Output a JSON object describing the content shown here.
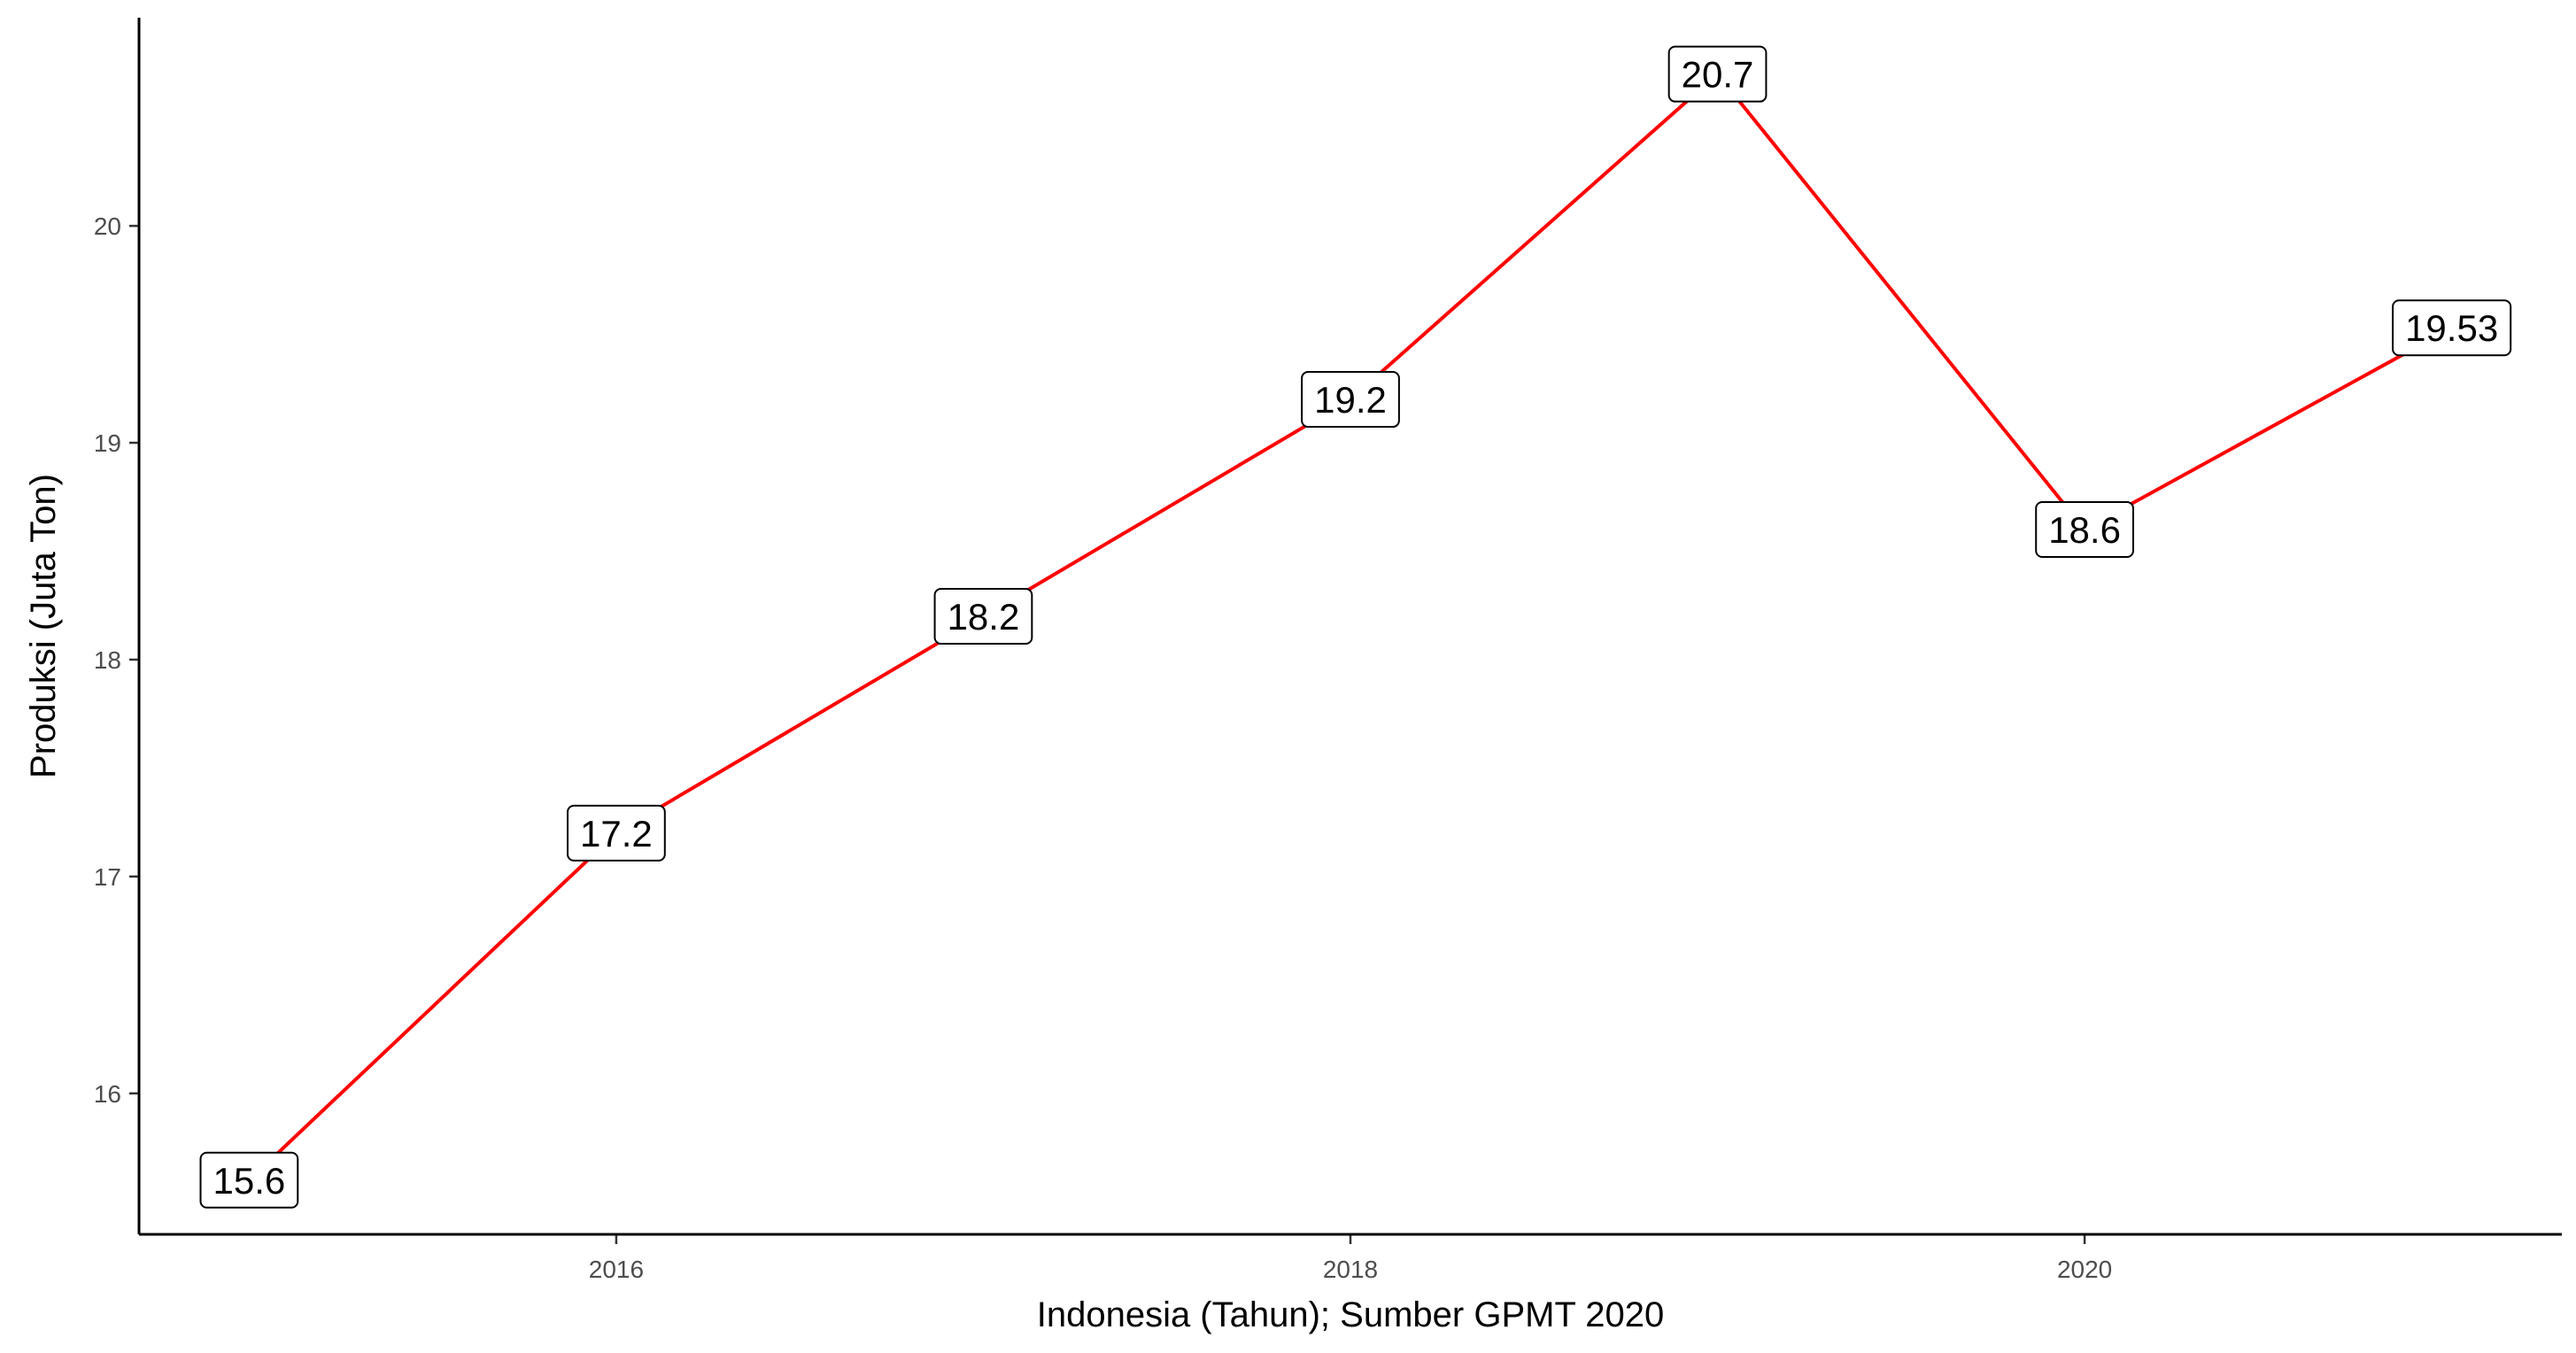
{
  "chart_data": {
    "type": "line",
    "xlabel": "Indonesia (Tahun); Sumber GPMT 2020",
    "ylabel": "Produksi (Juta Ton)",
    "x": [
      2015,
      2016,
      2017,
      2018,
      2019,
      2020,
      2021
    ],
    "series": [
      {
        "values": [
          15.6,
          17.2,
          18.2,
          19.2,
          20.7,
          18.6,
          19.53
        ],
        "labels": [
          "15.6",
          "17.2",
          "18.2",
          "19.2",
          "20.7",
          "18.6",
          "19.53"
        ],
        "color": "#ff0000"
      }
    ],
    "xlim": [
      2014.7,
      2021.3
    ],
    "ylim": [
      15.35,
      20.96
    ],
    "xticks": [
      2016,
      2018,
      2020
    ],
    "xtick_labels": [
      "2016",
      "2018",
      "2020"
    ],
    "yticks": [
      16,
      17,
      18,
      19,
      20
    ],
    "ytick_labels": [
      "16",
      "17",
      "18",
      "19",
      "20"
    ],
    "grid": false,
    "legend": "none"
  }
}
